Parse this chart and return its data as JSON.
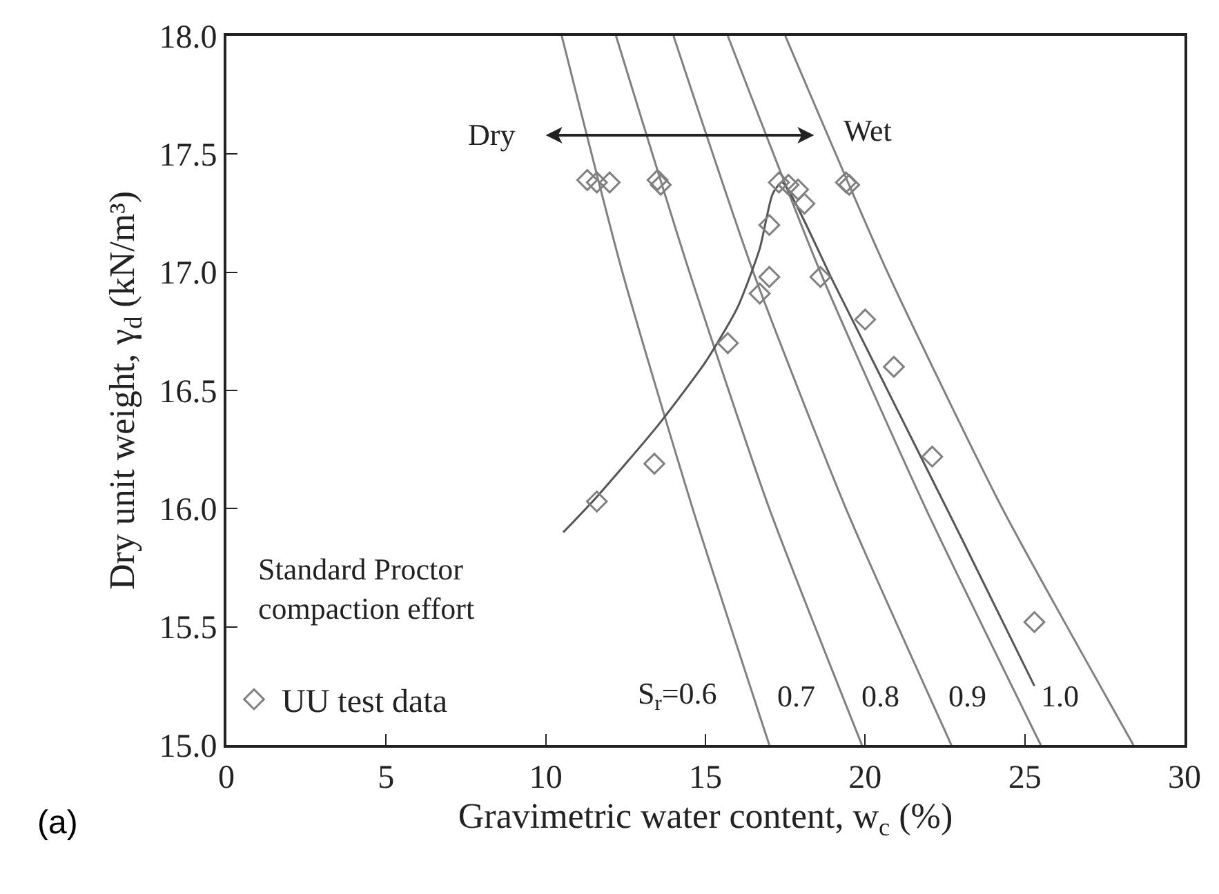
{
  "chart_data": {
    "type": "scatter",
    "xlabel": "Gravimetric water content, w$_{c}$ (%)",
    "ylabel": "Dry unit weight, γ$_{d}$ (kN/m³)",
    "xlim": [
      0,
      30
    ],
    "xticks": [
      0,
      5,
      10,
      15,
      20,
      25,
      30
    ],
    "ylim": [
      15,
      18
    ],
    "yticks": [
      {
        "value": 15,
        "label": "15.0"
      },
      15.5,
      {
        "value": 16,
        "label": "16.0"
      },
      16.5,
      {
        "value": 17,
        "label": "17.0"
      },
      17.5,
      {
        "value": 18,
        "label": "18.0"
      }
    ],
    "grid": false,
    "legend": "bottom left",
    "marker": "diamond",
    "series": [
      {
        "type": "line",
        "marker": "none",
        "color": "#808080",
        "x": [
          10.5,
          12.4,
          14.6,
          17.0
        ],
        "values": [
          18,
          17,
          16,
          15
        ]
      },
      {
        "type": "line",
        "marker": "none",
        "color": "#808080",
        "x": [
          12.2,
          14.5,
          17.0,
          19.9
        ],
        "values": [
          18,
          17,
          16,
          15
        ]
      },
      {
        "type": "line",
        "marker": "none",
        "color": "#808080",
        "x": [
          14.0,
          16.5,
          19.4,
          22.7
        ],
        "values": [
          18,
          17,
          16,
          15
        ]
      },
      {
        "type": "line",
        "marker": "none",
        "color": "#808080",
        "x": [
          15.7,
          18.6,
          21.9,
          25.5
        ],
        "values": [
          18,
          17,
          16,
          15
        ]
      },
      {
        "type": "line",
        "marker": "none",
        "color": "#808080",
        "x": [
          17.5,
          20.7,
          24.3,
          28.4
        ],
        "values": [
          18,
          17,
          16,
          15
        ]
      },
      {
        "type": "line",
        "marker": "none",
        "color": "#555555",
        "x": [
          10.55,
          11.6,
          13.5,
          15.0,
          16.0,
          16.7,
          17.1,
          17.4,
          19.0,
          21.0,
          23.0,
          25.3
        ],
        "values": [
          15.9,
          16.05,
          16.35,
          16.62,
          16.85,
          17.1,
          17.33,
          17.38,
          16.96,
          16.42,
          15.88,
          15.25
        ]
      },
      {
        "name": "UU test data",
        "color": "#808080",
        "x": [
          11.3,
          11.6,
          12.0,
          13.5,
          13.6,
          17.3,
          17.6,
          17.9,
          18.1,
          19.4,
          19.5,
          17.0,
          17.0,
          16.7,
          15.7,
          18.6,
          20.0,
          20.9,
          22.1,
          25.3,
          11.6,
          13.4
        ],
        "values": [
          17.39,
          17.38,
          17.38,
          17.39,
          17.37,
          17.38,
          17.37,
          17.35,
          17.29,
          17.38,
          17.37,
          17.2,
          16.98,
          16.91,
          16.7,
          16.98,
          16.8,
          16.6,
          16.22,
          15.52,
          16.03,
          16.19
        ]
      }
    ],
    "annotations": [
      "S$_{r}$=0.6",
      "0.7",
      "0.8",
      "0.9",
      "1.0",
      "Dry",
      "Wet",
      "Standard Proctor\ncompaction effort",
      "(a)"
    ]
  }
}
